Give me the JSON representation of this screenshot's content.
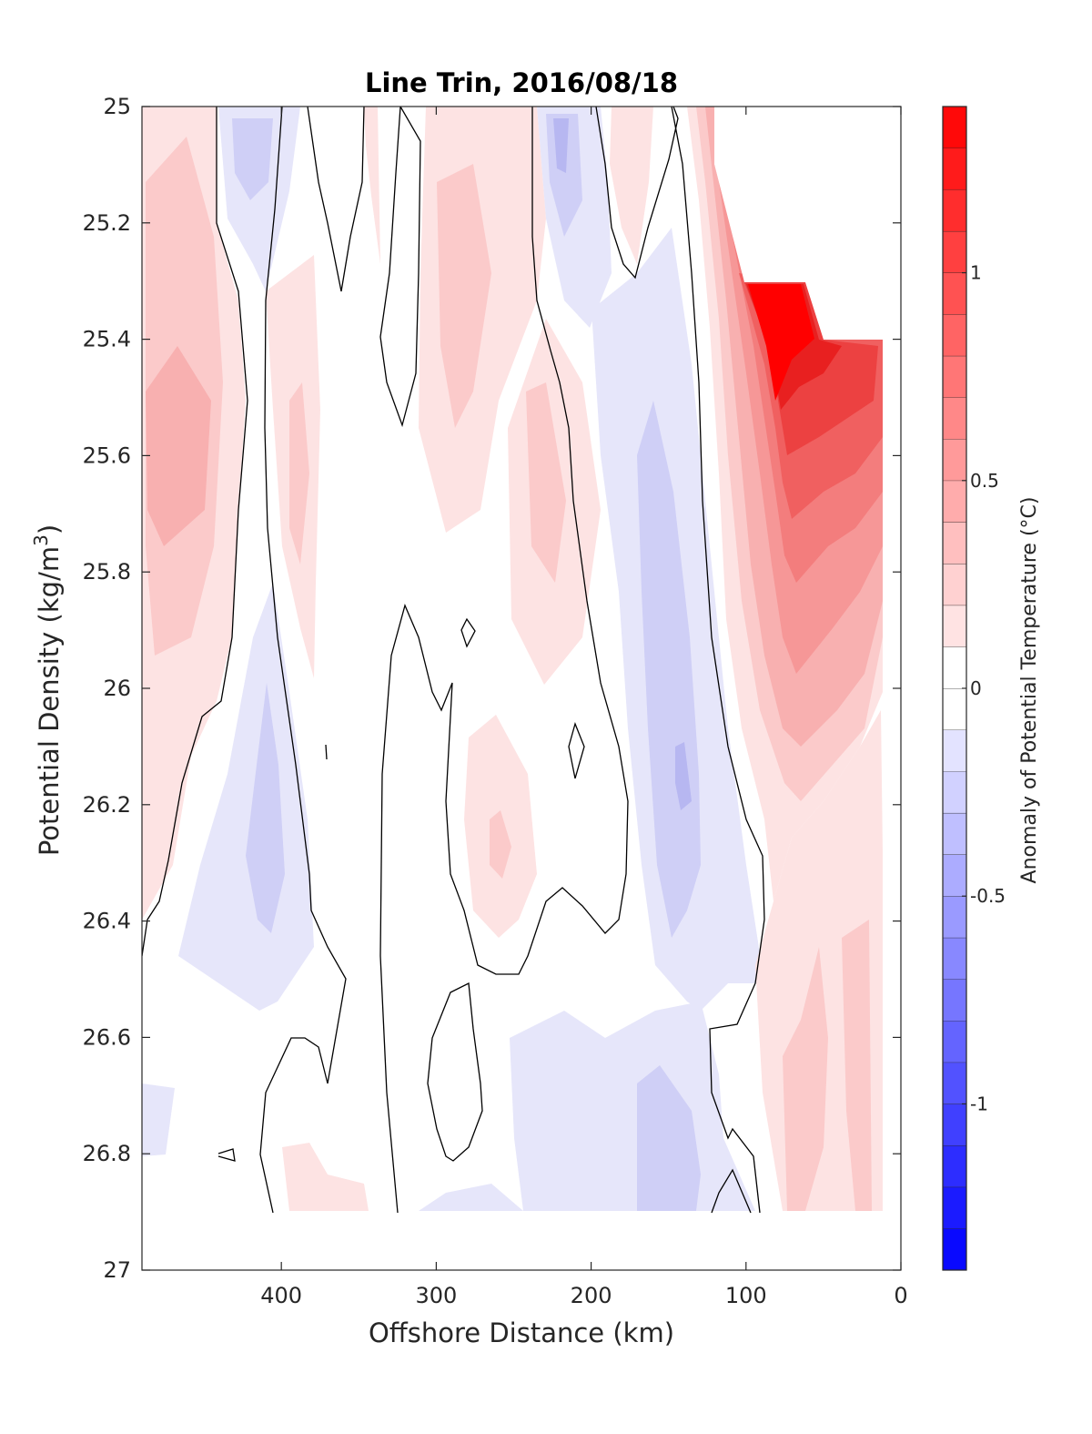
{
  "chart_data": {
    "type": "filled-contour",
    "title": "Line Trin, 2016/08/18",
    "xlabel": "Offshore Distance (km)",
    "ylabel_main": "Potential Density (kg/m",
    "ylabel_sup": "3",
    "ylabel_close": ")",
    "colorbar_label": "Anomaly of Potential Temperature (°C)",
    "xlim": [
      490,
      0
    ],
    "ylim": [
      25,
      27
    ],
    "x_reversed": true,
    "y_reversed": true,
    "x_ticks": [
      400,
      300,
      200,
      100,
      0
    ],
    "x_tick_labels": [
      "400",
      "300",
      "200",
      "100",
      "0"
    ],
    "y_ticks": [
      25,
      25.2,
      25.4,
      25.6,
      25.8,
      26,
      26.2,
      26.4,
      26.6,
      26.8,
      27
    ],
    "y_tick_labels": [
      "25",
      "25.2",
      "25.4",
      "25.6",
      "25.8",
      "26",
      "26.2",
      "26.4",
      "26.6",
      "26.8",
      "27"
    ],
    "colorbar_range": [
      -1.4,
      1.4
    ],
    "colorbar_ticks": [
      1,
      0.5,
      0,
      -0.5,
      -1
    ],
    "colorbar_tick_labels": [
      "1",
      "0.5",
      "0",
      "-0.5",
      "-1"
    ],
    "contour_level_step": 0.1,
    "zero_contour_shown": true,
    "colors": {
      "positive_max": "#ff0000",
      "negative_max": "#0000ff",
      "zero": "#ffffff",
      "contour_line": "#000000"
    },
    "data_coverage": {
      "x_range": [
        10,
        490
      ],
      "y_max_density": 26.9
    },
    "anomaly_features": [
      {
        "label": "warm core near coast",
        "x": 80,
        "y": 25.45,
        "value": 1.4
      },
      {
        "label": "warm band offshore edge",
        "x": 465,
        "y": 25.65,
        "value": 0.4
      },
      {
        "label": "warm band",
        "x": 300,
        "y": 25.3,
        "value": 0.25
      },
      {
        "label": "warm band",
        "x": 225,
        "y": 25.7,
        "value": 0.25
      },
      {
        "label": "warm patch",
        "x": 255,
        "y": 26.3,
        "value": 0.3
      },
      {
        "label": "cold band",
        "x": 220,
        "y": 25.1,
        "value": -0.3
      },
      {
        "label": "cold band",
        "x": 140,
        "y": 26.2,
        "value": -0.3
      },
      {
        "label": "cold patch",
        "x": 405,
        "y": 26.3,
        "value": -0.3
      },
      {
        "label": "cold patch deep",
        "x": 150,
        "y": 26.8,
        "value": -0.35
      },
      {
        "label": "warm patch deep",
        "x": 70,
        "y": 26.7,
        "value": 0.25
      }
    ]
  }
}
